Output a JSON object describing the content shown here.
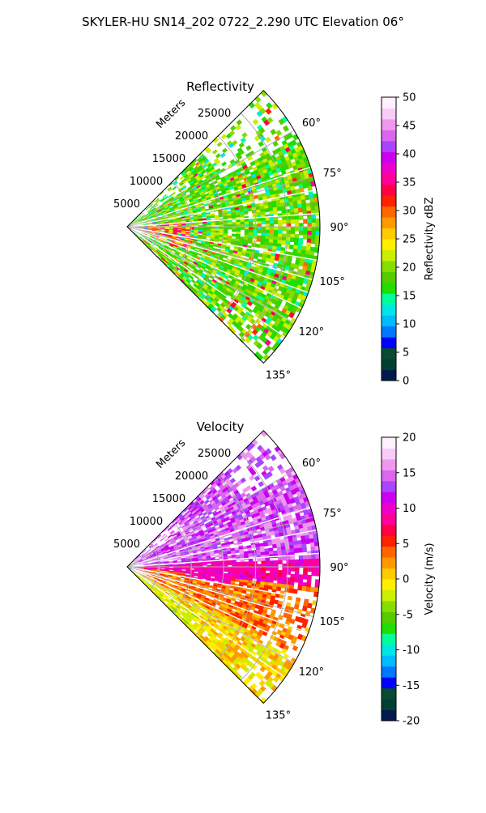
{
  "figure": {
    "title": "SKYLER-HU  SN14_202  0722_2.290 UTC Elevation 06°"
  },
  "chart_data": [
    {
      "type": "heatmap",
      "subtype": "polar-sector",
      "title": "Reflectivity",
      "radial_label": "Meters",
      "radial_ticks": [
        5000,
        10000,
        15000,
        20000,
        25000
      ],
      "rmax": 30000,
      "angle_ticks": [
        60,
        75,
        90,
        105,
        120,
        135
      ],
      "angle_tick_labels": [
        "60°",
        "75°",
        "90°",
        "105°",
        "120°",
        "135°"
      ],
      "theta_range": [
        45,
        135
      ],
      "grid": true,
      "colorbar": {
        "label": "Reflectivity dBZ",
        "range": [
          0,
          50
        ],
        "ticks": [
          0,
          5,
          10,
          15,
          20,
          25,
          30,
          35,
          40,
          45,
          50
        ],
        "colors": [
          "#001a4d",
          "#004033",
          "#0a4a33",
          "#0000ff",
          "#0077ff",
          "#00bbff",
          "#00e5e5",
          "#00ff99",
          "#22dd00",
          "#55cc00",
          "#88dd00",
          "#ccee00",
          "#ffee00",
          "#ffcc00",
          "#ff9900",
          "#ff6600",
          "#ff2200",
          "#ff0044",
          "#ff0099",
          "#ee00cc",
          "#cc00ee",
          "#aa44ff",
          "#dd66ee",
          "#ee99ee",
          "#f8ccf8",
          "#fff0ff"
        ]
      },
      "summary": "Reflectivity mostly 15–25 dBZ (green/yellow-green) across the sector, with stronger 30–40 dBZ streaks near the radar along 90–110°."
    },
    {
      "type": "heatmap",
      "subtype": "polar-sector",
      "title": "Velocity",
      "radial_label": "Meters",
      "radial_ticks": [
        5000,
        10000,
        15000,
        20000,
        25000
      ],
      "rmax": 30000,
      "angle_ticks": [
        60,
        75,
        90,
        105,
        120,
        135
      ],
      "angle_tick_labels": [
        "60°",
        "75°",
        "90°",
        "105°",
        "120°",
        "135°"
      ],
      "theta_range": [
        45,
        135
      ],
      "grid": true,
      "colorbar": {
        "label": "Velocity (m/s)",
        "range": [
          -20,
          20
        ],
        "ticks": [
          -20,
          -15,
          -10,
          -5,
          0,
          5,
          10,
          15,
          20
        ],
        "colors": [
          "#001a4d",
          "#004033",
          "#0a4a33",
          "#0000ff",
          "#0077ff",
          "#00bbff",
          "#00e5e5",
          "#00ff99",
          "#22dd00",
          "#55cc00",
          "#88dd00",
          "#ccee00",
          "#ffee00",
          "#ffcc00",
          "#ff9900",
          "#ff6600",
          "#ff2200",
          "#ff0044",
          "#ff0099",
          "#ee00cc",
          "#cc00ee",
          "#aa44ff",
          "#dd66ee",
          "#ee99ee",
          "#f8ccf8",
          "#fff0ff"
        ]
      },
      "summary": "Velocity shows +12 to +18 m/s (magenta/purple) toward the upper sector (60–85°), +8 to +10 m/s (red) near 90°, and 0 to +5 m/s (yellow/orange) toward 105–135°, with -3 m/s (yellow-green) near the lower edge."
    }
  ]
}
